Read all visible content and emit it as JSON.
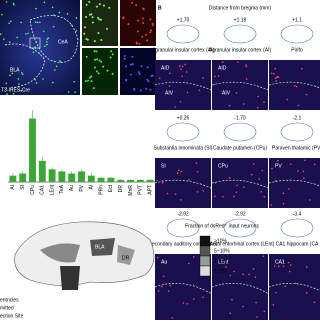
{
  "panel_a": {
    "region_labels": [
      "CeA",
      "BLA"
    ],
    "genotype": "T3-IRES-Cre"
  },
  "panel_b": {
    "letter": "B",
    "title": "Distance from bregma (mm)",
    "rows": [
      {
        "columns": [
          {
            "bregma": "+1.70",
            "region": "Agranular insular cortex (AI)",
            "subregions": [
              "AID",
              "AIV"
            ]
          },
          {
            "bregma": "+1.18",
            "region": "Agranular insular cortex (AI)",
            "subregions": [
              "AID",
              "AIV"
            ]
          },
          {
            "bregma": "+1.1",
            "region": "Pirifo",
            "subregions": []
          }
        ]
      },
      {
        "columns": [
          {
            "bregma": "+0.26",
            "region": "Substantia innominata (SI)",
            "subregions": [
              "SI"
            ]
          },
          {
            "bregma": "-1.70",
            "region": "Caudate putamen (CPu)",
            "subregions": [
              "CPu"
            ]
          },
          {
            "bregma": "-2.1",
            "region": "Paraven thalamic (PV)",
            "subregions": [
              "PV"
            ]
          }
        ]
      },
      {
        "columns": [
          {
            "bregma": "-2.92",
            "region": "Secondary auditory cortex (Au)",
            "subregions": [
              "Au"
            ]
          },
          {
            "bregma": "-2.92",
            "region": "Lateral entorhinal cortex (LEnt)",
            "subregions": [
              "LEnt"
            ]
          },
          {
            "bregma": "-3.4",
            "region": "CA1 hippocam (CA",
            "subregions": [
              "CA1"
            ]
          }
        ]
      }
    ]
  },
  "chart_data": {
    "type": "bar",
    "categories": [
      "AI",
      "SI",
      "CPu",
      "CA1",
      "LEnt",
      "TeA",
      "Au",
      "PV",
      "Al",
      "PRh",
      "Ect",
      "DR",
      "MnR",
      "PVT",
      "APT"
    ],
    "values": [
      3,
      4,
      30,
      10,
      6,
      5,
      4,
      5,
      3,
      2,
      2,
      1,
      1,
      1,
      1
    ],
    "errors": [
      1,
      1,
      4,
      2,
      1,
      1,
      1,
      1,
      1,
      0.5,
      0.5,
      0.3,
      0.3,
      0.3,
      0.3
    ],
    "ylim": [
      0,
      35
    ],
    "color": "#3aa635"
  },
  "legend": {
    "title": "Fraction of dsRed⁺ input neurons",
    "items": [
      ">10%",
      "5~10%",
      "1~5%",
      "1~2%"
    ],
    "colors": [
      "#111111",
      "#555555",
      "#999999",
      "#dddddd"
    ]
  },
  "sagittal": {
    "labels": [
      "DR",
      "BLA"
    ],
    "notes": [
      "entricles",
      "mitted",
      "ection Site"
    ]
  }
}
